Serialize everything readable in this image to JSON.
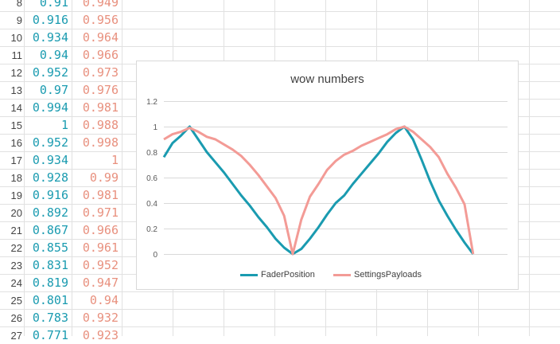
{
  "sheet": {
    "rows": [
      {
        "n": "8",
        "a": "0.91",
        "b": "0.949"
      },
      {
        "n": "9",
        "a": "0.916",
        "b": "0.956"
      },
      {
        "n": "10",
        "a": "0.934",
        "b": "0.964"
      },
      {
        "n": "11",
        "a": "0.94",
        "b": "0.966"
      },
      {
        "n": "12",
        "a": "0.952",
        "b": "0.973"
      },
      {
        "n": "13",
        "a": "0.97",
        "b": "0.976"
      },
      {
        "n": "14",
        "a": "0.994",
        "b": "0.981"
      },
      {
        "n": "15",
        "a": "1",
        "b": "0.988"
      },
      {
        "n": "16",
        "a": "0.952",
        "b": "0.998"
      },
      {
        "n": "17",
        "a": "0.934",
        "b": "1"
      },
      {
        "n": "18",
        "a": "0.928",
        "b": "0.99"
      },
      {
        "n": "19",
        "a": "0.916",
        "b": "0.981"
      },
      {
        "n": "20",
        "a": "0.892",
        "b": "0.971"
      },
      {
        "n": "21",
        "a": "0.867",
        "b": "0.966"
      },
      {
        "n": "22",
        "a": "0.855",
        "b": "0.961"
      },
      {
        "n": "23",
        "a": "0.831",
        "b": "0.952"
      },
      {
        "n": "24",
        "a": "0.819",
        "b": "0.947"
      },
      {
        "n": "25",
        "a": "0.801",
        "b": "0.94"
      },
      {
        "n": "26",
        "a": "0.783",
        "b": "0.932"
      },
      {
        "n": "27",
        "a": "0.771",
        "b": "0.923"
      }
    ],
    "colors": {
      "a": "#1a9bb0",
      "b": "#e8907e",
      "grid": "#e1e1e1"
    }
  },
  "chart_data": {
    "type": "line",
    "title": "wow numbers",
    "ylim": [
      0,
      1.2
    ],
    "yticks": [
      "0",
      "0.2",
      "0.4",
      "0.6",
      "0.8",
      "1",
      "1.2"
    ],
    "grid": true,
    "legend_placement": "bottom",
    "x": [
      0,
      1,
      2,
      3,
      4,
      5,
      6,
      7,
      8,
      9,
      10,
      11,
      12,
      13,
      14,
      15,
      16,
      17,
      18,
      19,
      20,
      21,
      22,
      23,
      24,
      25,
      26,
      27,
      28,
      29,
      30,
      31,
      32,
      33,
      34,
      35,
      36,
      37,
      38,
      39,
      40
    ],
    "series": [
      {
        "name": "FaderPosition",
        "color": "#1a9bb0",
        "values": [
          0.76,
          0.87,
          0.93,
          1.0,
          0.9,
          0.8,
          0.72,
          0.64,
          0.55,
          0.46,
          0.38,
          0.29,
          0.21,
          0.12,
          0.05,
          0.0,
          0.04,
          0.12,
          0.21,
          0.31,
          0.4,
          0.46,
          0.55,
          0.63,
          0.71,
          0.79,
          0.88,
          0.95,
          1.0,
          0.9,
          0.74,
          0.57,
          0.42,
          0.3,
          0.19,
          0.09,
          0.0,
          0.0,
          0.0,
          0.0,
          0.0
        ]
      },
      {
        "name": "SettingsPayloads",
        "color": "#f39b96",
        "values": [
          0.9,
          0.94,
          0.96,
          0.99,
          0.96,
          0.92,
          0.9,
          0.86,
          0.82,
          0.77,
          0.7,
          0.62,
          0.53,
          0.44,
          0.3,
          0.0,
          0.27,
          0.45,
          0.55,
          0.66,
          0.73,
          0.78,
          0.81,
          0.85,
          0.88,
          0.91,
          0.94,
          0.98,
          1.0,
          0.96,
          0.9,
          0.84,
          0.76,
          0.63,
          0.52,
          0.39,
          0.0,
          0.0,
          0.0,
          0.0,
          0.0
        ]
      }
    ]
  }
}
